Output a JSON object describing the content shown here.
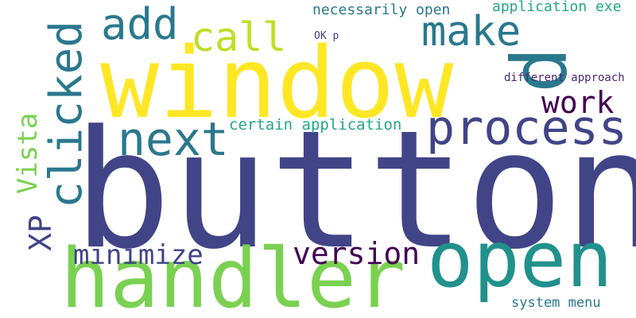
{
  "words": [
    {
      "text": "button",
      "color": "#414487",
      "rotation": 0
    },
    {
      "text": "window",
      "color": "#fde725",
      "rotation": 0
    },
    {
      "text": "handler",
      "color": "#7ad151",
      "rotation": 0
    },
    {
      "text": "open",
      "color": "#21918c",
      "rotation": 0
    },
    {
      "text": "process",
      "color": "#414487",
      "rotation": 0
    },
    {
      "text": "p",
      "color": "#2a788e",
      "rotation": 90
    },
    {
      "text": "clicked",
      "color": "#2a788e",
      "rotation": -90
    },
    {
      "text": "next",
      "color": "#2a788e",
      "rotation": 0
    },
    {
      "text": "make",
      "color": "#2a788e",
      "rotation": 0
    },
    {
      "text": "add",
      "color": "#2a788e",
      "rotation": 0
    },
    {
      "text": "call",
      "color": "#bddf26",
      "rotation": 0
    },
    {
      "text": "work",
      "color": "#440154",
      "rotation": 0
    },
    {
      "text": "version",
      "color": "#440154",
      "rotation": 0
    },
    {
      "text": "minimize",
      "color": "#414487",
      "rotation": 0
    },
    {
      "text": "Vista",
      "color": "#7ad151",
      "rotation": -90
    },
    {
      "text": "XP",
      "color": "#414487",
      "rotation": -90
    },
    {
      "text": "certain application",
      "color": "#22a884",
      "rotation": 0
    },
    {
      "text": "necessarily open",
      "color": "#2a788e",
      "rotation": 0
    },
    {
      "text": "application exe",
      "color": "#22a884",
      "rotation": 0
    },
    {
      "text": "OK p",
      "color": "#414487",
      "rotation": 0
    },
    {
      "text": "different approach",
      "color": "#482878",
      "rotation": 0
    },
    {
      "text": "system menu",
      "color": "#2a788e",
      "rotation": 0
    }
  ]
}
